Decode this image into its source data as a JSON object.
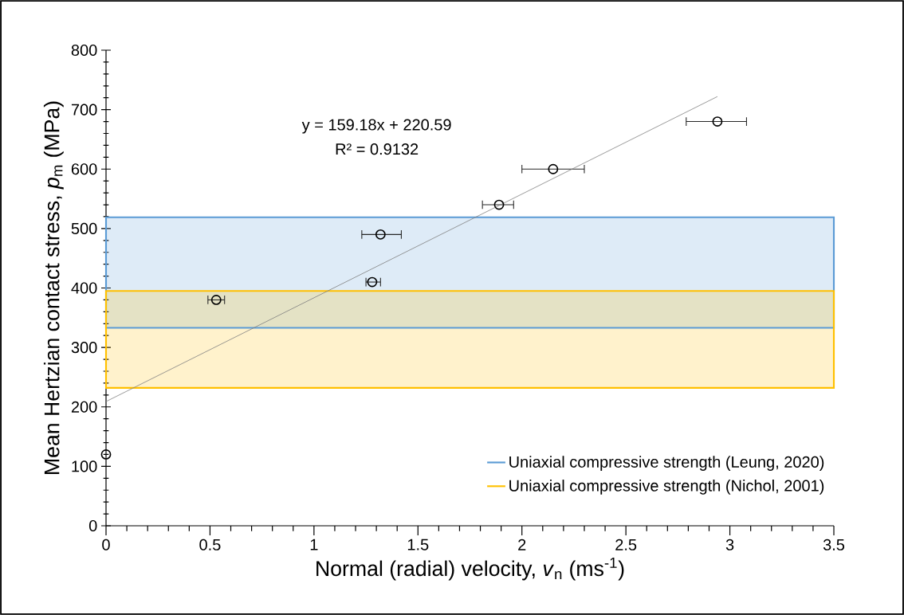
{
  "chart_data": {
    "type": "scatter",
    "xlabel": "Normal (radial) velocity, *v*$_{n}$ (ms$^{-1}$)",
    "ylabel": "Mean Hertzian contact stress, *p*$_{m}$ (MPa)",
    "xlim": [
      0,
      3.5
    ],
    "xticks": [
      0,
      0.5,
      1,
      1.5,
      2,
      2.5,
      3,
      3.5
    ],
    "ylim": [
      0,
      800
    ],
    "yticks": [
      0,
      100,
      200,
      300,
      400,
      500,
      600,
      700,
      800
    ],
    "marker": "circle",
    "legend": "bottom right",
    "series": [
      {
        "color": "#000000",
        "x": [
          0,
          0.53,
          1.28,
          1.32,
          1.89,
          2.15,
          2.94
        ],
        "values": [
          120,
          380,
          410,
          490,
          540,
          600,
          680
        ],
        "xerrors": [
          null,
          [
            0.49,
            0.57
          ],
          [
            1.25,
            1.32
          ],
          [
            1.23,
            1.42
          ],
          [
            1.81,
            1.96
          ],
          [
            2.0,
            2.3
          ],
          [
            2.79,
            3.08
          ]
        ]
      },
      {
        "type": "line",
        "marker": "none",
        "color": "#808080",
        "x": [
          0,
          2.94
        ],
        "values": [
          209,
          722
        ]
      }
    ],
    "bands": [
      {
        "axis": "y",
        "from": 333,
        "to": 519,
        "label": "Uniaxial compressive strength (Leung, 2020)",
        "color": "#5b9bd5"
      },
      {
        "axis": "y",
        "from": 232,
        "to": 395,
        "label": "Uniaxial compressive strength (Nichol, 2001)",
        "color": "#ffc000"
      }
    ],
    "annotations": [
      "y = 159.18x + 220.59",
      "R² = 0.9132"
    ]
  }
}
